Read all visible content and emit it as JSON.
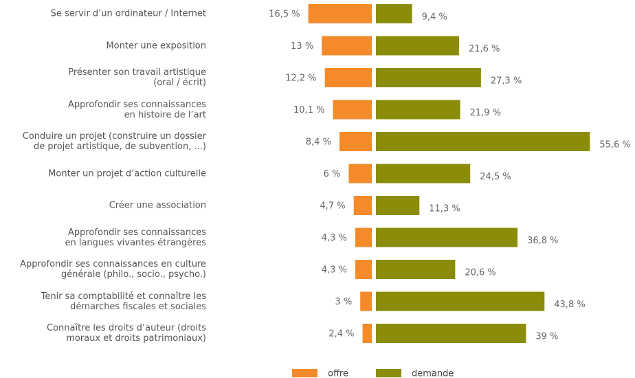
{
  "chart_data": {
    "type": "diverging-bar",
    "categories": [
      "Se servir d’un ordinateur / Internet",
      "Monter une exposition",
      "Présenter son travail artistique\n(oral / écrit)",
      "Approfondir ses connaissances\nen histoire de l’art",
      "Conduire un projet (construire un dossier\nde projet artistique, de subvention, ...)",
      "Monter un projet d’action culturelle",
      "Créer une association",
      "Approfondir ses connaissances\nen langues vivantes étrangères",
      "Approfondir ses connaissances en culture\ngénérale (philo., socio., psycho.)",
      "Tenir sa comptabilité et connaître les\ndémarches fiscales et sociales",
      "Connaître les droits d’auteur (droits\nmoraux et droits patrimoniaux)"
    ],
    "series": [
      {
        "name": "offre",
        "color": "#f58a2a",
        "values": [
          16.5,
          13,
          12.2,
          10.1,
          8.4,
          6,
          4.7,
          4.3,
          4.3,
          3,
          2.4
        ],
        "value_labels": [
          "16,5 %",
          "13 %",
          "12,2 %",
          "10,1 %",
          "8,4 %",
          "6 %",
          "4,7 %",
          "4,3 %",
          "4,3 %",
          "3 %",
          "2,4 %"
        ]
      },
      {
        "name": "demande",
        "color": "#8b8c0a",
        "values": [
          9.4,
          21.6,
          27.3,
          21.9,
          55.6,
          24.5,
          11.3,
          36.8,
          20.6,
          43.8,
          39
        ],
        "value_labels": [
          "9,4 %",
          "21,6 %",
          "27,3 %",
          "21,9 %",
          "55,6 %",
          "24,5 %",
          "11,3 %",
          "36,8 %",
          "20,6 %",
          "43,8 %",
          "39 %"
        ]
      }
    ]
  }
}
